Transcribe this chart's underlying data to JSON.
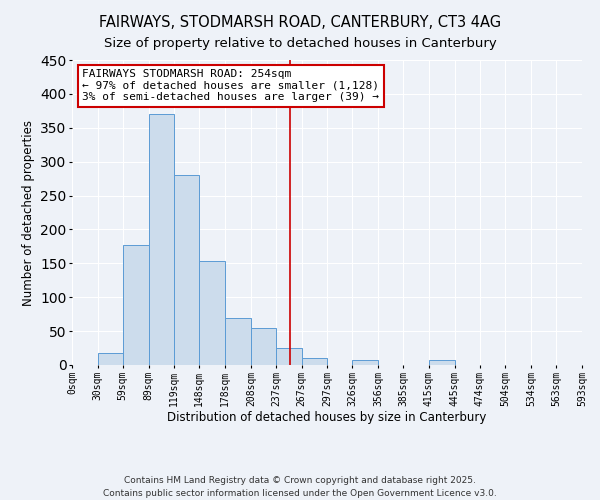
{
  "title": "FAIRWAYS, STODMARSH ROAD, CANTERBURY, CT3 4AG",
  "subtitle": "Size of property relative to detached houses in Canterbury",
  "xlabel": "Distribution of detached houses by size in Canterbury",
  "ylabel": "Number of detached properties",
  "bar_edges": [
    0,
    30,
    59,
    89,
    119,
    148,
    178,
    208,
    237,
    267,
    297,
    326,
    356,
    385,
    415,
    445,
    474,
    504,
    534,
    563,
    593
  ],
  "bar_heights": [
    0,
    18,
    177,
    370,
    280,
    153,
    70,
    55,
    25,
    10,
    0,
    7,
    0,
    0,
    8,
    0,
    0,
    0,
    0,
    0
  ],
  "bar_color": "#ccdcec",
  "bar_edge_color": "#5b9bd5",
  "vline_x": 254,
  "vline_color": "#cc0000",
  "annotation_line1": "FAIRWAYS STODMARSH ROAD: 254sqm",
  "annotation_line2": "← 97% of detached houses are smaller (1,128)",
  "annotation_line3": "3% of semi-detached houses are larger (39) →",
  "annotation_box_color": "#ffffff",
  "annotation_box_edge_color": "#cc0000",
  "ylim": [
    0,
    450
  ],
  "yticks": [
    0,
    50,
    100,
    150,
    200,
    250,
    300,
    350,
    400,
    450
  ],
  "tick_labels": [
    "0sqm",
    "30sqm",
    "59sqm",
    "89sqm",
    "119sqm",
    "148sqm",
    "178sqm",
    "208sqm",
    "237sqm",
    "267sqm",
    "297sqm",
    "326sqm",
    "356sqm",
    "385sqm",
    "415sqm",
    "445sqm",
    "474sqm",
    "504sqm",
    "534sqm",
    "563sqm",
    "593sqm"
  ],
  "footer1": "Contains HM Land Registry data © Crown copyright and database right 2025.",
  "footer2": "Contains public sector information licensed under the Open Government Licence v3.0.",
  "background_color": "#eef2f8",
  "grid_color": "#ffffff",
  "title_fontsize": 10.5,
  "subtitle_fontsize": 9.5,
  "axis_label_fontsize": 8.5,
  "tick_fontsize": 7,
  "annotation_fontsize": 8,
  "footer_fontsize": 6.5
}
